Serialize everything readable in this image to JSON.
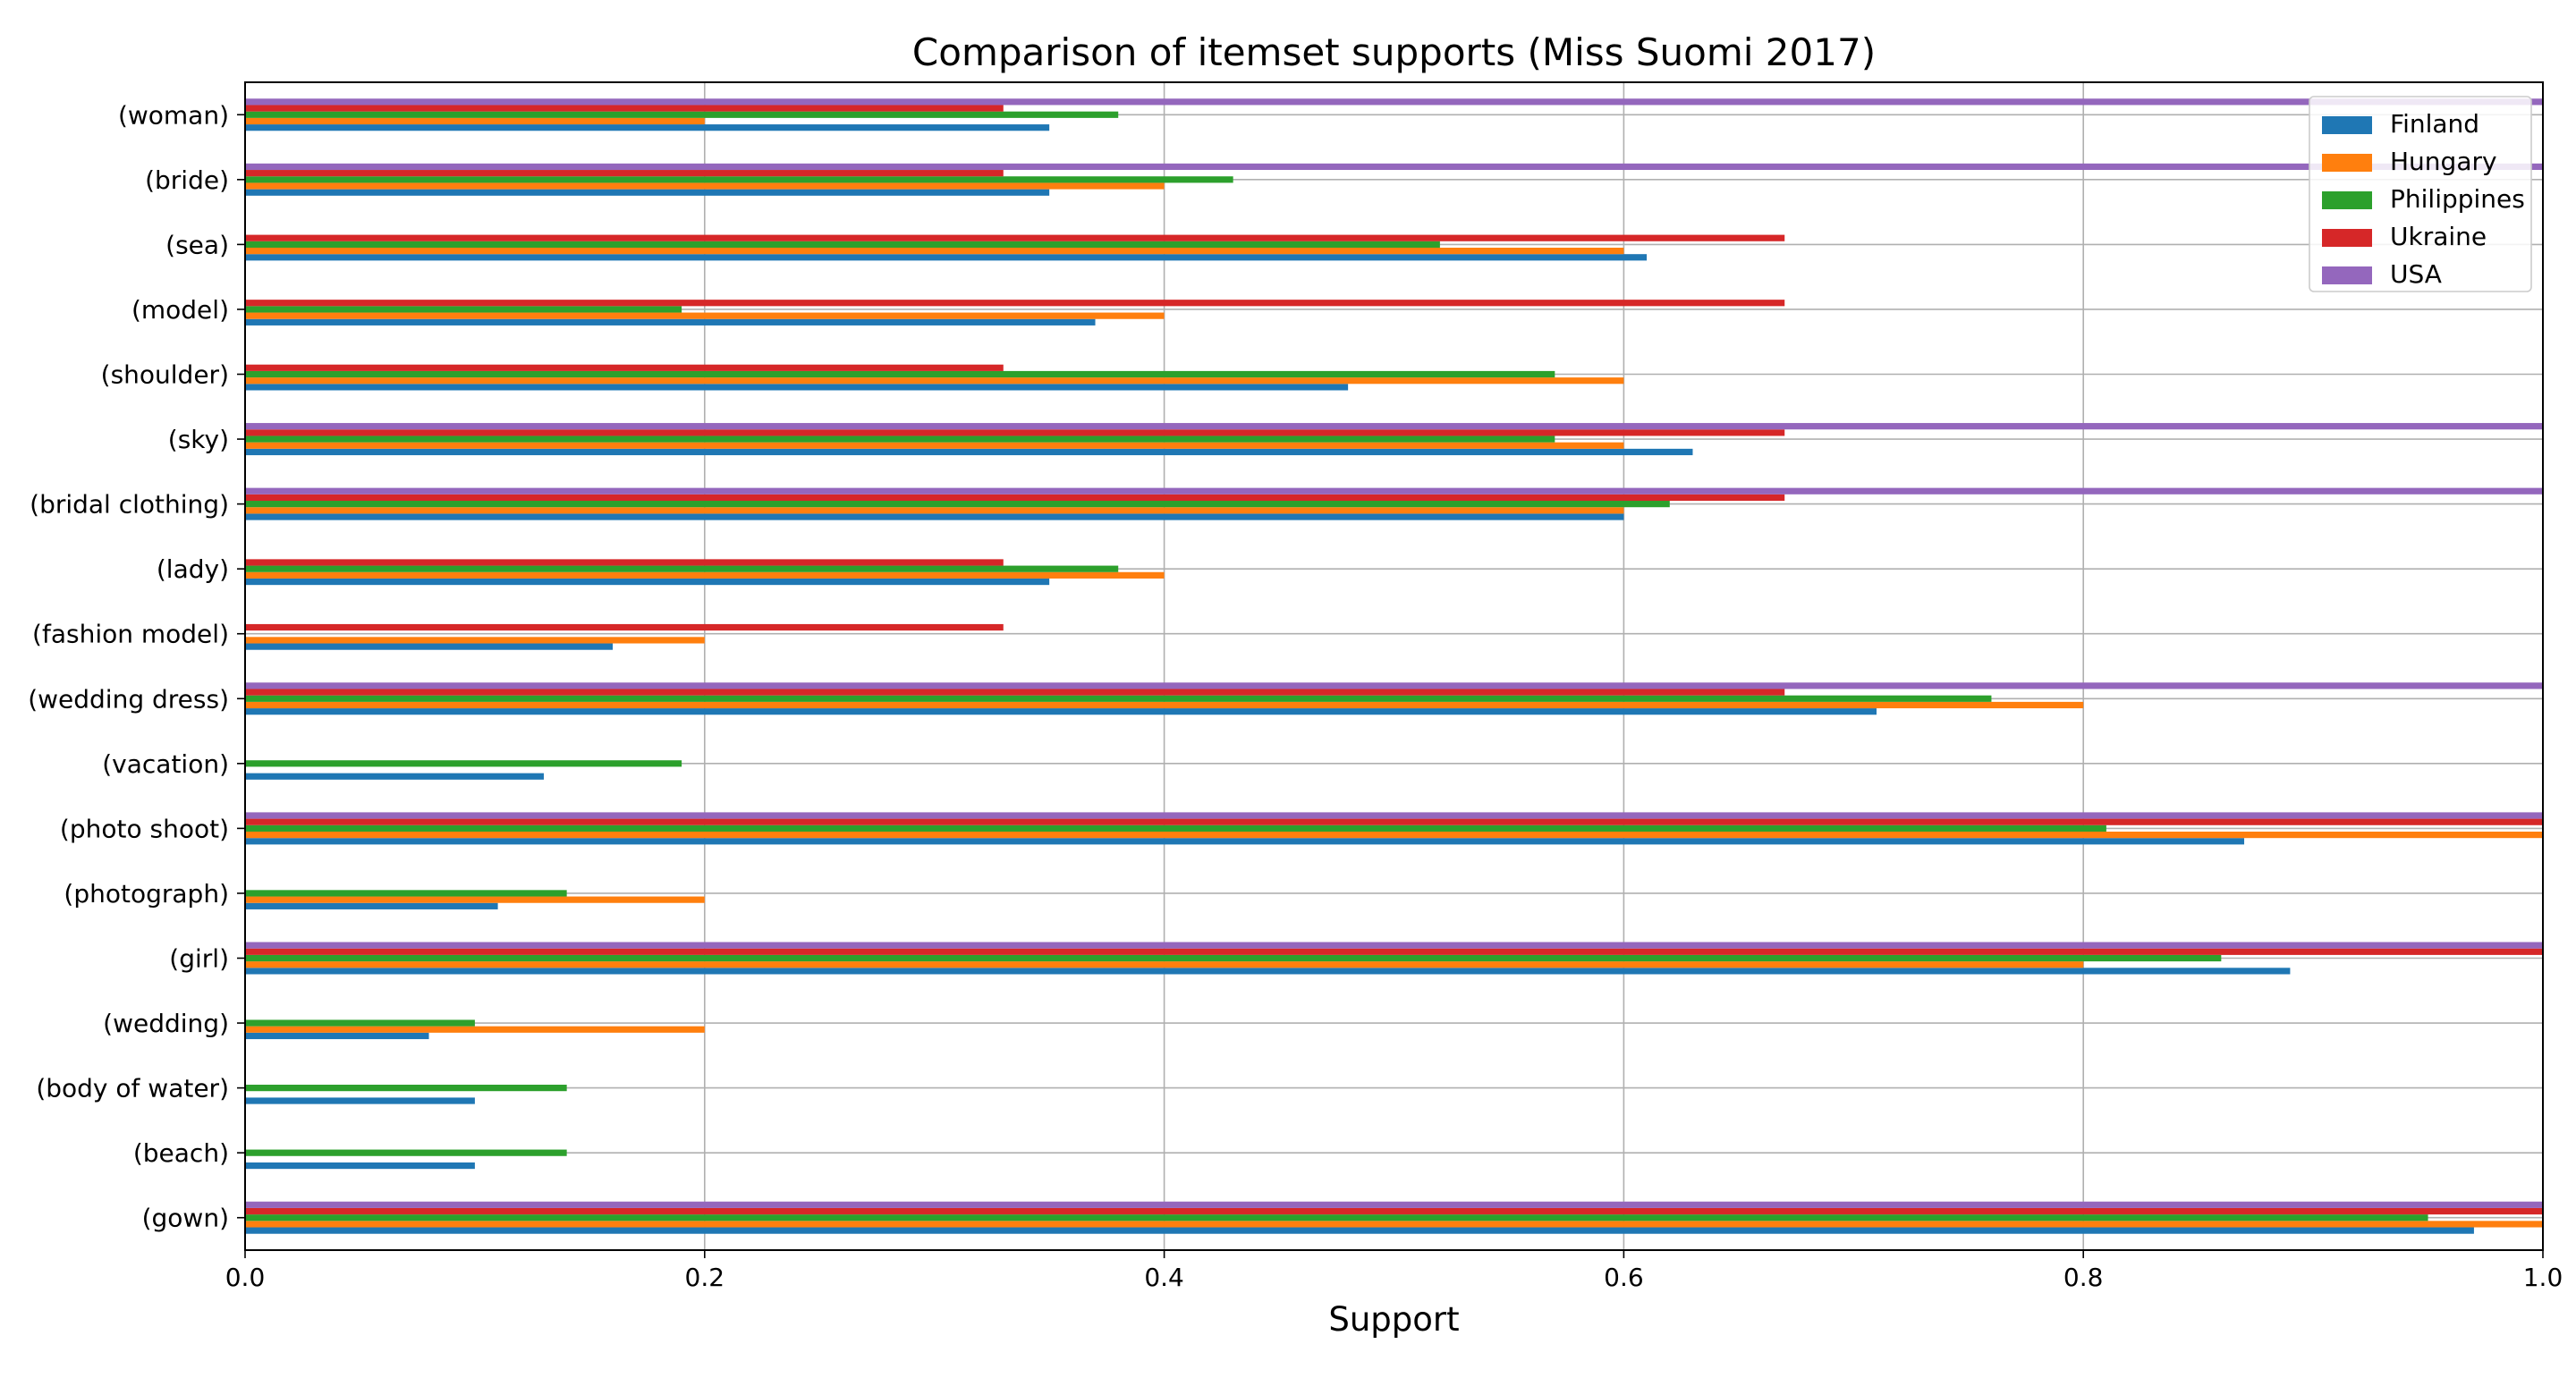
{
  "colors": {
    "Finland": "#1f77b4",
    "Hungary": "#ff7f0e",
    "Philippines": "#2ca02c",
    "Ukraine": "#d62728",
    "USA": "#9467bd",
    "grid": "#b0b0b0",
    "legend_border": "#cccccc"
  },
  "chart_data": {
    "type": "bar",
    "orientation": "horizontal",
    "title": "Comparison of itemset supports (Miss Suomi 2017)",
    "xlabel": "Support",
    "ylabel": "",
    "xlim": [
      0,
      1
    ],
    "xticks": [
      "0.0",
      "0.2",
      "0.4",
      "0.6",
      "0.8",
      "1.0"
    ],
    "grid": true,
    "legend_position": "top-right",
    "categories": [
      "(gown)",
      "(beach)",
      "(body of water)",
      "(wedding)",
      "(girl)",
      "(photograph)",
      "(photo shoot)",
      "(vacation)",
      "(wedding dress)",
      "(fashion model)",
      "(lady)",
      "(bridal clothing)",
      "(sky)",
      "(shoulder)",
      "(model)",
      "(sea)",
      "(bride)",
      "(woman)"
    ],
    "series": [
      {
        "name": "Finland",
        "values": [
          0.97,
          0.1,
          0.1,
          0.08,
          0.89,
          0.11,
          0.87,
          0.13,
          0.71,
          0.16,
          0.35,
          0.6,
          0.63,
          0.48,
          0.37,
          0.61,
          0.35,
          0.35
        ]
      },
      {
        "name": "Hungary",
        "values": [
          1.0,
          0,
          0,
          0.2,
          0.8,
          0.2,
          1.0,
          0,
          0.8,
          0.2,
          0.4,
          0.6,
          0.6,
          0.6,
          0.4,
          0.6,
          0.4,
          0.2
        ]
      },
      {
        "name": "Philippines",
        "values": [
          0.95,
          0.14,
          0.14,
          0.1,
          0.86,
          0.14,
          0.81,
          0.19,
          0.76,
          0,
          0.38,
          0.62,
          0.57,
          0.57,
          0.19,
          0.52,
          0.43,
          0.38
        ]
      },
      {
        "name": "Ukraine",
        "values": [
          1.0,
          0,
          0,
          0,
          1.0,
          0,
          1.0,
          0,
          0.67,
          0.33,
          0.33,
          0.67,
          0.67,
          0.33,
          0.67,
          0.67,
          0.33,
          0.33
        ]
      },
      {
        "name": "USA",
        "values": [
          1.0,
          0,
          0,
          0,
          1.0,
          0,
          1.0,
          0,
          1.0,
          0,
          0,
          1.0,
          1.0,
          0,
          0,
          0,
          1.0,
          1.0
        ]
      }
    ]
  }
}
